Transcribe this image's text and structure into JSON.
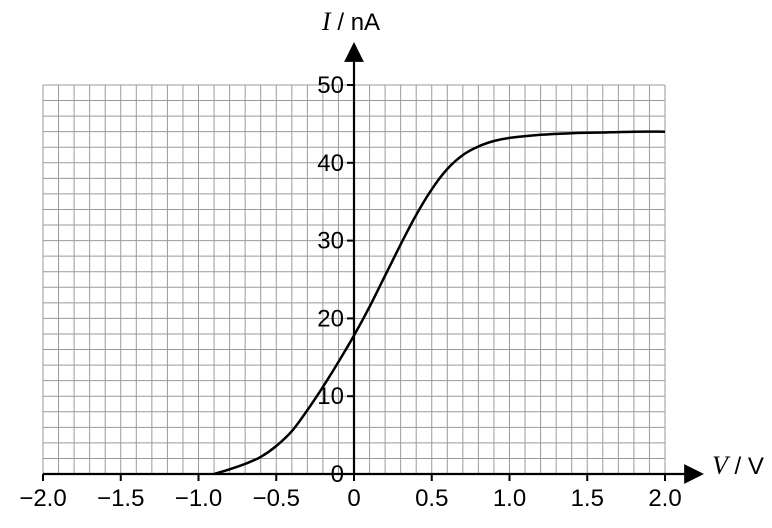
{
  "chart_data": {
    "type": "line",
    "title": "",
    "xlabel": {
      "symbol": "V",
      "unit": "V"
    },
    "ylabel": {
      "symbol": "I",
      "unit": "nA"
    },
    "xlim": [
      -2.0,
      2.0
    ],
    "ylim": [
      0,
      50
    ],
    "xticks": [
      -2.0,
      -1.5,
      -1.0,
      -0.5,
      0,
      0.5,
      1.0,
      1.5,
      2.0
    ],
    "xtick_labels": [
      "−2.0",
      "−1.5",
      "−1.0",
      "−0.5",
      "0",
      "0.5",
      "1.0",
      "1.5",
      "2.0"
    ],
    "yticks": [
      0,
      10,
      20,
      30,
      40,
      50
    ],
    "ytick_labels": [
      "0",
      "10",
      "20",
      "30",
      "40",
      "50"
    ],
    "grid": true,
    "grid_minor_x": 0.1,
    "grid_minor_y": 2,
    "grid_color": "#9a9a9a",
    "line_color": "#000000",
    "series": [
      {
        "x": [
          -0.9,
          -0.8,
          -0.7,
          -0.6,
          -0.5,
          -0.4,
          -0.3,
          -0.2,
          -0.1,
          0,
          0.1,
          0.2,
          0.3,
          0.4,
          0.5,
          0.6,
          0.7,
          0.8,
          0.9,
          1.0,
          1.2,
          1.4,
          1.6,
          1.8,
          2.0
        ],
        "y": [
          0,
          0.6,
          1.3,
          2.2,
          3.6,
          5.5,
          8.2,
          11.2,
          14.4,
          17.8,
          21.5,
          25.5,
          29.5,
          33.3,
          36.6,
          39.2,
          41.0,
          42.1,
          42.8,
          43.2,
          43.6,
          43.8,
          43.9,
          44.0,
          44.0
        ]
      }
    ]
  }
}
